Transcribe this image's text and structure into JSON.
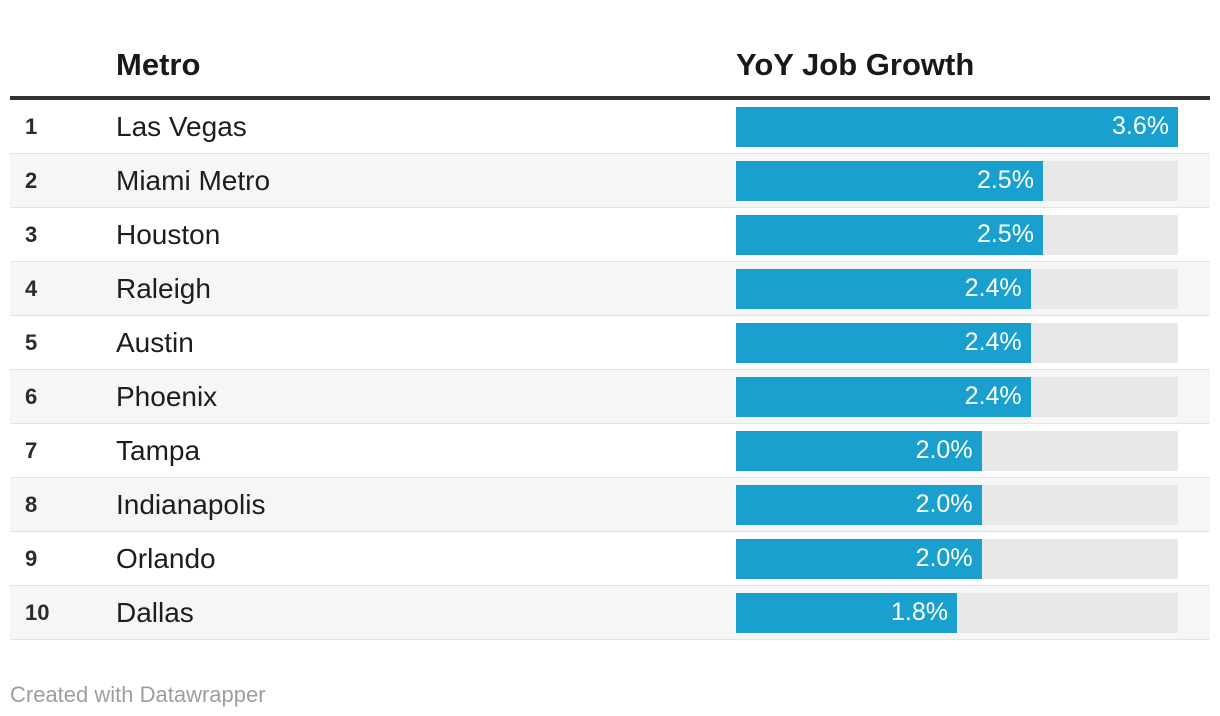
{
  "table": {
    "columns": {
      "rank": "",
      "metro": "Metro",
      "growth": "YoY Job Growth"
    }
  },
  "rows": [
    {
      "rank": "1",
      "metro": "Las Vegas",
      "value": 3.6,
      "label": "3.6%"
    },
    {
      "rank": "2",
      "metro": "Miami Metro",
      "value": 2.5,
      "label": "2.5%"
    },
    {
      "rank": "3",
      "metro": "Houston",
      "value": 2.5,
      "label": "2.5%"
    },
    {
      "rank": "4",
      "metro": "Raleigh",
      "value": 2.4,
      "label": "2.4%"
    },
    {
      "rank": "5",
      "metro": "Austin",
      "value": 2.4,
      "label": "2.4%"
    },
    {
      "rank": "6",
      "metro": "Phoenix",
      "value": 2.4,
      "label": "2.4%"
    },
    {
      "rank": "7",
      "metro": "Tampa",
      "value": 2.0,
      "label": "2.0%"
    },
    {
      "rank": "8",
      "metro": "Indianapolis",
      "value": 2.0,
      "label": "2.0%"
    },
    {
      "rank": "9",
      "metro": "Orlando",
      "value": 2.0,
      "label": "2.0%"
    },
    {
      "rank": "10",
      "metro": "Dallas",
      "value": 1.8,
      "label": "1.8%"
    }
  ],
  "footer": {
    "text": "Created with Datawrapper"
  },
  "colors": {
    "bar_fill": "#1aa0cf",
    "bar_track": "#e8e8e8",
    "stripe": "#f6f6f6",
    "header_border": "#333333"
  },
  "chart_data": {
    "type": "bar",
    "title": "",
    "orientation": "horizontal",
    "categories": [
      "Las Vegas",
      "Miami Metro",
      "Houston",
      "Raleigh",
      "Austin",
      "Phoenix",
      "Tampa",
      "Indianapolis",
      "Orlando",
      "Dallas"
    ],
    "ranks": [
      1,
      2,
      3,
      4,
      5,
      6,
      7,
      8,
      9,
      10
    ],
    "values": [
      3.6,
      2.5,
      2.5,
      2.4,
      2.4,
      2.4,
      2.0,
      2.0,
      2.0,
      1.8
    ],
    "data_labels": [
      "3.6%",
      "2.5%",
      "2.5%",
      "2.4%",
      "2.4%",
      "2.4%",
      "2.0%",
      "2.0%",
      "2.0%",
      "1.8%"
    ],
    "series_label": "YoY Job Growth",
    "xlabel": "",
    "ylabel": "Metro",
    "xlim": [
      0,
      3.6
    ],
    "value_format": "percent",
    "grid": false,
    "legend": false
  }
}
